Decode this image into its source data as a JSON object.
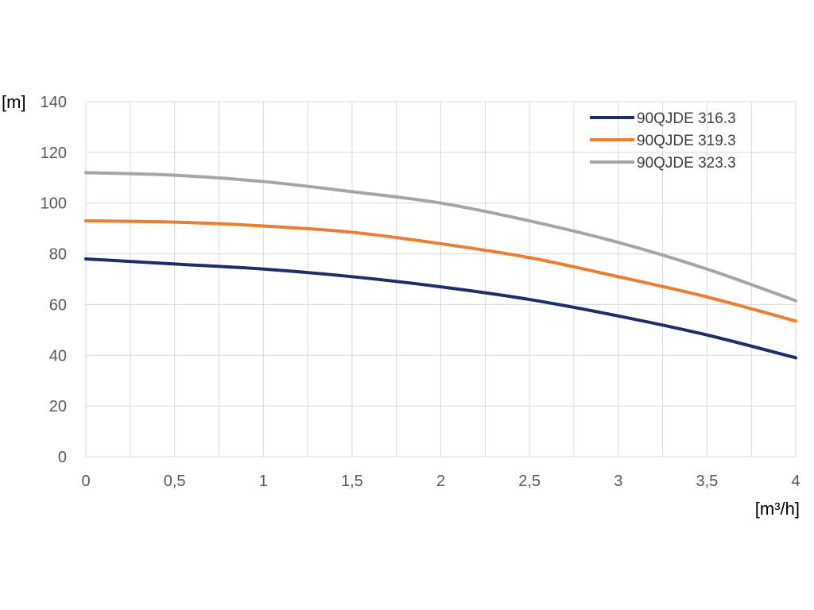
{
  "chart_data": {
    "type": "line",
    "title": "",
    "xlabel": "[m³/h]",
    "ylabel": "[m]",
    "xlim": [
      0,
      4
    ],
    "ylim": [
      0,
      140
    ],
    "x_ticks": [
      "0",
      "0,5",
      "1",
      "1,5",
      "2",
      "2,5",
      "3",
      "3,5",
      "4"
    ],
    "y_ticks": [
      "0",
      "20",
      "40",
      "60",
      "80",
      "100",
      "120",
      "140"
    ],
    "grid": true,
    "legend_position": "top-right",
    "x": [
      0,
      0.5,
      1,
      1.5,
      2,
      2.5,
      3,
      3.5,
      4
    ],
    "series": [
      {
        "name": "90QJDE 316.3",
        "color": "#1f2d6b",
        "values": [
          78,
          76,
          74,
          71,
          67,
          62,
          55.5,
          48,
          39
        ]
      },
      {
        "name": "90QJDE 319.3",
        "color": "#ed7d31",
        "values": [
          93,
          92.5,
          91,
          88.5,
          84,
          78.5,
          71,
          63,
          53.5
        ]
      },
      {
        "name": "90QJDE 323.3",
        "color": "#a5a5a5",
        "values": [
          112,
          111,
          108.5,
          104.5,
          100,
          93,
          84.5,
          74,
          61.5
        ]
      }
    ]
  }
}
